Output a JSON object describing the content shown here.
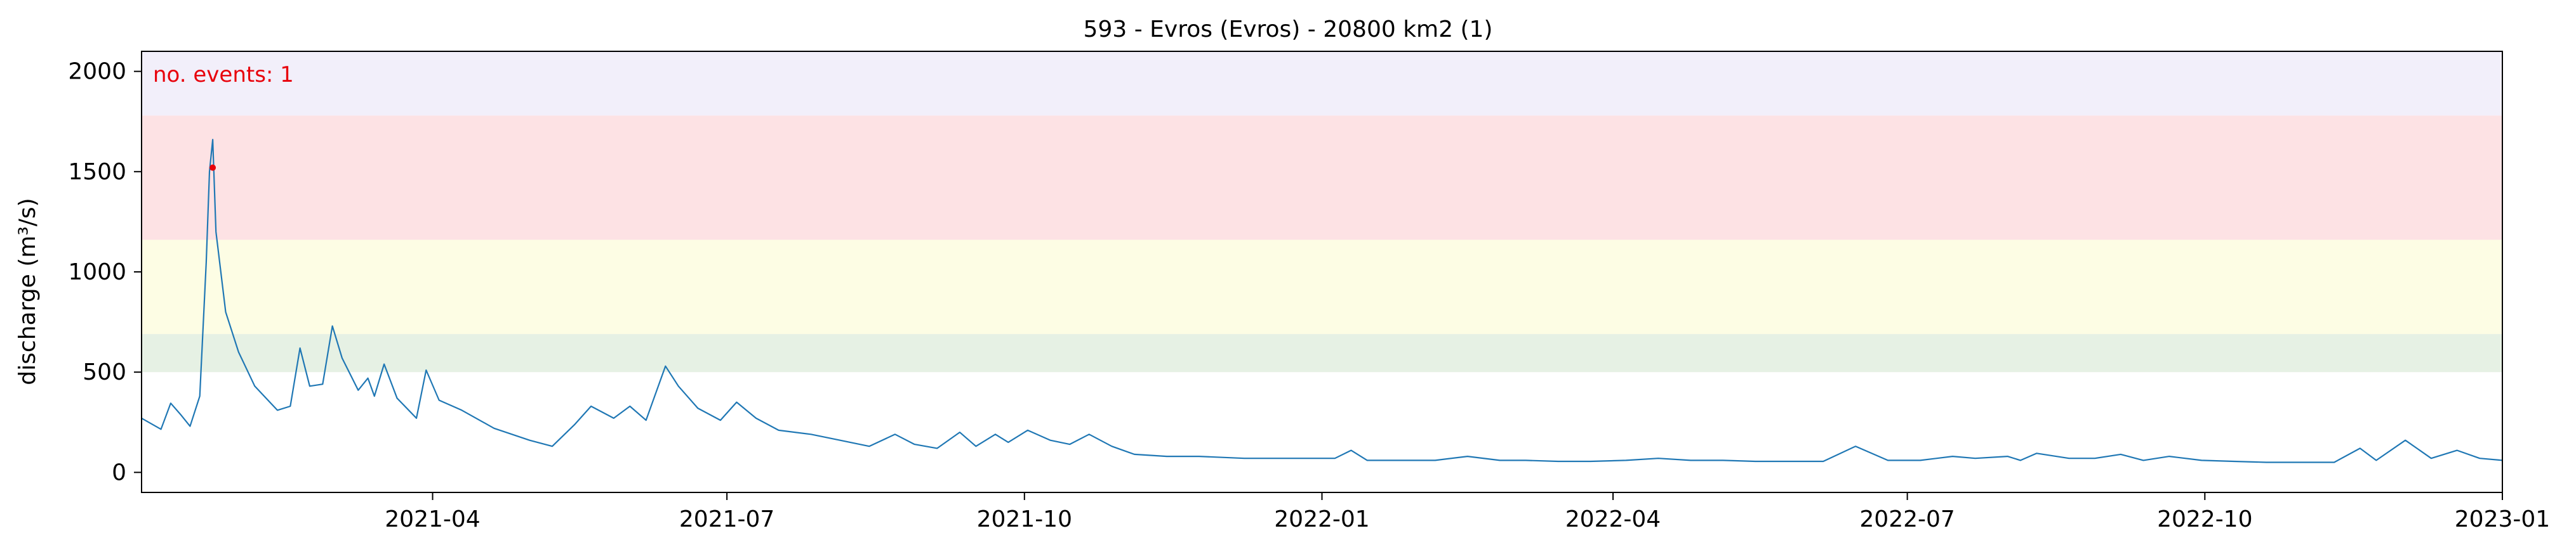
{
  "chart_data": {
    "type": "line",
    "title": "593 - Evros (Evros) - 20800 km2 (1)",
    "xlabel": "",
    "ylabel": "discharge (m³/s)",
    "xlim": [
      "2021-01-01",
      "2023-01-01"
    ],
    "ylim": [
      -100,
      2100
    ],
    "grid": false,
    "x_ticks": [
      "2021-04-01",
      "2021-07-01",
      "2021-10-01",
      "2022-01-01",
      "2022-04-01",
      "2022-07-01",
      "2022-10-01",
      "2023-01-01"
    ],
    "x_tick_labels": [
      "2021-04",
      "2021-07",
      "2021-10",
      "2022-01",
      "2022-04",
      "2022-07",
      "2022-10",
      "2023-01"
    ],
    "y_ticks": [
      0,
      500,
      1000,
      1500,
      2000
    ],
    "y_tick_labels": [
      "0",
      "500",
      "1000",
      "1500",
      "2000"
    ],
    "bands": [
      {
        "from": 500,
        "to": 690,
        "color": "#e6f1e4"
      },
      {
        "from": 690,
        "to": 1160,
        "color": "#fdfde4"
      },
      {
        "from": 1160,
        "to": 1780,
        "color": "#fde2e4"
      },
      {
        "from": 1780,
        "to": 2100,
        "color": "#f2effa"
      }
    ],
    "series": [
      {
        "color": "#1f77b4",
        "points": [
          [
            "2021-01-01",
            270
          ],
          [
            "2021-01-07",
            215
          ],
          [
            "2021-01-10",
            345
          ],
          [
            "2021-01-13",
            290
          ],
          [
            "2021-01-16",
            230
          ],
          [
            "2021-01-19",
            380
          ],
          [
            "2021-01-21",
            1050
          ],
          [
            "2021-01-22",
            1500
          ],
          [
            "2021-01-23",
            1660
          ],
          [
            "2021-01-24",
            1200
          ],
          [
            "2021-01-27",
            800
          ],
          [
            "2021-01-31",
            600
          ],
          [
            "2021-02-05",
            430
          ],
          [
            "2021-02-12",
            310
          ],
          [
            "2021-02-16",
            330
          ],
          [
            "2021-02-19",
            620
          ],
          [
            "2021-02-22",
            430
          ],
          [
            "2021-02-26",
            440
          ],
          [
            "2021-03-01",
            730
          ],
          [
            "2021-03-04",
            570
          ],
          [
            "2021-03-09",
            410
          ],
          [
            "2021-03-12",
            470
          ],
          [
            "2021-03-14",
            380
          ],
          [
            "2021-03-17",
            540
          ],
          [
            "2021-03-21",
            370
          ],
          [
            "2021-03-27",
            270
          ],
          [
            "2021-03-30",
            510
          ],
          [
            "2021-04-03",
            360
          ],
          [
            "2021-04-10",
            310
          ],
          [
            "2021-04-20",
            220
          ],
          [
            "2021-05-01",
            160
          ],
          [
            "2021-05-08",
            130
          ],
          [
            "2021-05-15",
            240
          ],
          [
            "2021-05-20",
            330
          ],
          [
            "2021-05-27",
            270
          ],
          [
            "2021-06-01",
            330
          ],
          [
            "2021-06-06",
            260
          ],
          [
            "2021-06-12",
            530
          ],
          [
            "2021-06-16",
            430
          ],
          [
            "2021-06-22",
            320
          ],
          [
            "2021-06-29",
            260
          ],
          [
            "2021-07-04",
            350
          ],
          [
            "2021-07-10",
            270
          ],
          [
            "2021-07-17",
            210
          ],
          [
            "2021-07-27",
            190
          ],
          [
            "2021-08-05",
            160
          ],
          [
            "2021-08-14",
            130
          ],
          [
            "2021-08-22",
            190
          ],
          [
            "2021-08-28",
            140
          ],
          [
            "2021-09-04",
            120
          ],
          [
            "2021-09-11",
            200
          ],
          [
            "2021-09-16",
            130
          ],
          [
            "2021-09-22",
            190
          ],
          [
            "2021-09-26",
            150
          ],
          [
            "2021-10-02",
            210
          ],
          [
            "2021-10-09",
            160
          ],
          [
            "2021-10-15",
            140
          ],
          [
            "2021-10-21",
            190
          ],
          [
            "2021-10-28",
            130
          ],
          [
            "2021-11-04",
            90
          ],
          [
            "2021-11-14",
            80
          ],
          [
            "2021-11-24",
            80
          ],
          [
            "2021-12-08",
            70
          ],
          [
            "2021-12-20",
            70
          ],
          [
            "2022-01-05",
            70
          ],
          [
            "2022-01-10",
            110
          ],
          [
            "2022-01-15",
            60
          ],
          [
            "2022-01-25",
            60
          ],
          [
            "2022-02-05",
            60
          ],
          [
            "2022-02-15",
            80
          ],
          [
            "2022-02-25",
            60
          ],
          [
            "2022-03-05",
            60
          ],
          [
            "2022-03-15",
            55
          ],
          [
            "2022-03-25",
            55
          ],
          [
            "2022-04-05",
            60
          ],
          [
            "2022-04-15",
            70
          ],
          [
            "2022-04-25",
            60
          ],
          [
            "2022-05-05",
            60
          ],
          [
            "2022-05-15",
            55
          ],
          [
            "2022-05-25",
            55
          ],
          [
            "2022-06-05",
            55
          ],
          [
            "2022-06-15",
            130
          ],
          [
            "2022-06-25",
            60
          ],
          [
            "2022-07-05",
            60
          ],
          [
            "2022-07-15",
            80
          ],
          [
            "2022-07-22",
            70
          ],
          [
            "2022-08-01",
            80
          ],
          [
            "2022-08-05",
            60
          ],
          [
            "2022-08-10",
            95
          ],
          [
            "2022-08-20",
            70
          ],
          [
            "2022-08-28",
            70
          ],
          [
            "2022-09-05",
            90
          ],
          [
            "2022-09-12",
            60
          ],
          [
            "2022-09-20",
            80
          ],
          [
            "2022-09-30",
            60
          ],
          [
            "2022-10-10",
            55
          ],
          [
            "2022-10-20",
            50
          ],
          [
            "2022-10-30",
            50
          ],
          [
            "2022-11-10",
            50
          ],
          [
            "2022-11-18",
            120
          ],
          [
            "2022-11-23",
            60
          ],
          [
            "2022-12-02",
            160
          ],
          [
            "2022-12-10",
            70
          ],
          [
            "2022-12-18",
            110
          ],
          [
            "2022-12-25",
            70
          ],
          [
            "2023-01-01",
            60
          ]
        ]
      }
    ],
    "event_markers": [
      {
        "x": "2021-01-23",
        "y": 1520,
        "color": "#e8000b"
      }
    ],
    "annotations": [
      {
        "text": "no. events: 1",
        "position": "top-left",
        "color": "#e8000b"
      }
    ]
  }
}
